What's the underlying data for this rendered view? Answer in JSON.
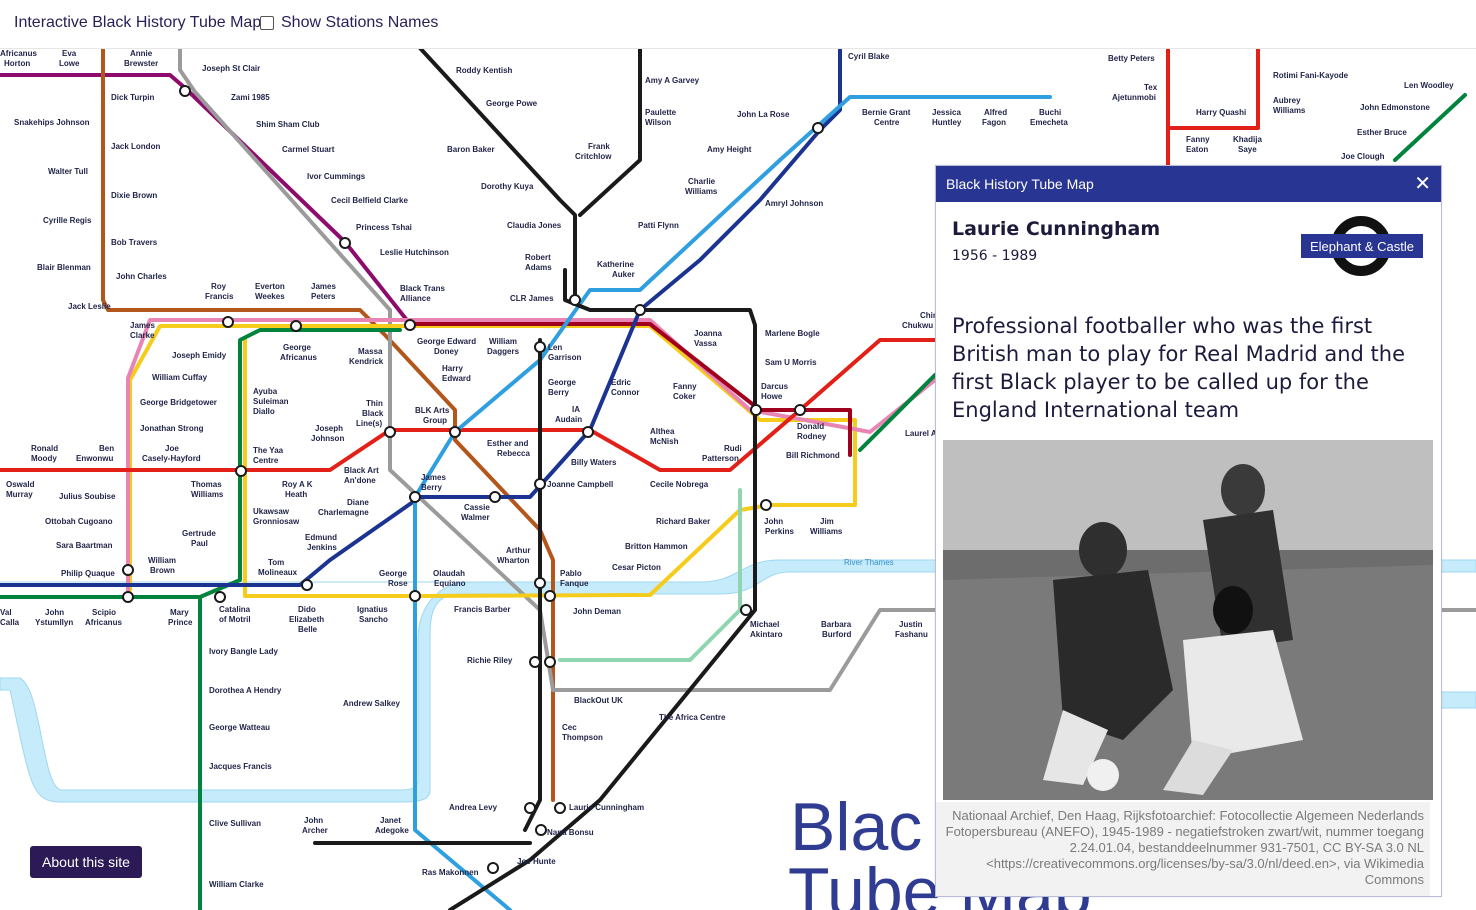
{
  "header": {
    "title": "Interactive Black History Tube Map",
    "toggle_label": "Show Stations Names"
  },
  "map": {
    "river_label": "River Thames",
    "background_title": "Black History Tube Map",
    "stations": [
      "Africanus Horton",
      "Eva Lowe",
      "Annie Brewster",
      "Joseph St Clair",
      "Zami 1985",
      "Shim Sham Club",
      "Carmel Stuart",
      "Ivor Cummings",
      "Cecil Belfield Clarke",
      "Princess Tshai",
      "Leslie Hutchinson",
      "Black Trans Alliance",
      "Dick Turpin",
      "Jack London",
      "Dixie Brown",
      "Bob Travers",
      "John Charles",
      "Snakehips Johnson",
      "Walter Tull",
      "Cyrille Regis",
      "Blair Blenman",
      "Jack Leslie",
      "Roddy Kentish",
      "George Powe",
      "Baron Baker",
      "Dorothy Kuya",
      "Claudia Jones",
      "Robert Adams",
      "CLR James",
      "Amy A Garvey",
      "Paulette Wilson",
      "Frank Critchlow",
      "Cyril Blake",
      "John La Rose",
      "Amy Height",
      "Charlie Williams",
      "Amryl Johnson",
      "Patti Flynn",
      "Katherine Auker",
      "Bernie Grant Centre",
      "Jessica Huntley",
      "Alfred Fagon",
      "Buchi Emecheta",
      "Betty Peters",
      "Tex Ajetunmobi",
      "Rotimi Fani-Kayode",
      "Aubrey Williams",
      "Harry Quashi",
      "Fanny Eaton",
      "Khadija Saye",
      "Len Woodley",
      "John Edmonstone",
      "Esther Bruce",
      "Joe Clough",
      "Roy Francis",
      "Everton Weekes",
      "James Peters",
      "James Clarke",
      "Joseph Emidy",
      "William Cuffay",
      "George Bridgetower",
      "Jonathan Strong",
      "Ronald Moody",
      "Ben Enwonwu",
      "Joe Casely-Hayford",
      "George Africanus",
      "Ayuba Suleiman Diallo",
      "The Yaa Centre",
      "Joseph Johnson",
      "Thin Black Line(s)",
      "Massa Kendrick",
      "George Edward Doney",
      "William Daggers",
      "Harry Edward",
      "BLK Arts Group",
      "Len Garrison",
      "George Berry",
      "Edric Connor",
      "IA Audain",
      "Joanna Vassa",
      "Marlene Bogle",
      "Sam U Morris",
      "Fanny Coker",
      "Darcus Howe",
      "Donald Rodney",
      "Bill Richmond",
      "Althea McNish",
      "Rudi Patterson",
      "Esther and Rebecca",
      "Billy Waters",
      "Black Art An'done",
      "Roy A K Heath",
      "Thomas Williams",
      "Oswald Murray",
      "Julius Soubise",
      "Ottobah Cugoano",
      "Sara Baartman",
      "Philip Quaque",
      "William Brown",
      "Gertrude Paul",
      "James Berry",
      "Joanne Campbell",
      "Cecile Nobrega",
      "Diane Charlemagne",
      "Ukawsaw Gronniosaw",
      "Cassie Walmer",
      "Edmund Jenkins",
      "Tom Molineaux",
      "Richard Baker",
      "John Perkins",
      "Jim Williams",
      "Arthur Wharton",
      "Britton Hammon",
      "Cesar Picton",
      "Pablo Fanque",
      "George Rose",
      "Olaudah Equiano",
      "Francis Barber",
      "John Deman",
      "Michael Akintaro",
      "Barbara Burford",
      "Justin Fashanu",
      "John Ystumllyn",
      "Scipio Africanus",
      "Mary Prince",
      "Catalina of Motril",
      "Dido Elizabeth Belle",
      "Ignatius Sancho",
      "Richie Riley",
      "BlackOut UK",
      "Cec Thompson",
      "The Africa Centre",
      "Ivory Bangle Lady",
      "Dorothea A Hendry",
      "George Watteau",
      "Jacques Francis",
      "Andrew Salkey",
      "Clive Sullivan",
      "John Archer",
      "Janet Adegoke",
      "Andrea Levy",
      "Laurie Cunningham",
      "Nana Bonsu",
      "Joe Hunte",
      "Ras Makonnen",
      "William Clarke",
      "Chukwu",
      "Laurel A",
      "Chin",
      "Calla"
    ]
  },
  "panel": {
    "title": "Black History Tube Map",
    "person_name": "Laurie Cunningham",
    "years": "1956 - 1989",
    "station": "Elephant & Castle",
    "description": "Professional footballer who was the first British man to play for Real Madrid and the first Black player to be called up for the England International team",
    "credit": "Nationaal Archief, Den Haag, Rijksfotoarchief: Fotocollectie Algemeen Nederlands Fotopersbureau (ANEFO), 1945-1989 - negatiefstroken zwart/wit, nummer toegang 2.24.01.04, bestanddeelnummer 931-7501, CC BY-SA 3.0 NL <https://creativecommons.org/licenses/by-sa/3.0/nl/deed.en>, via Wikimedia Commons"
  },
  "about_button": "About this site",
  "colors": {
    "accent": "#283593",
    "button": "#2b1a56",
    "river": "#c6ecfb"
  }
}
